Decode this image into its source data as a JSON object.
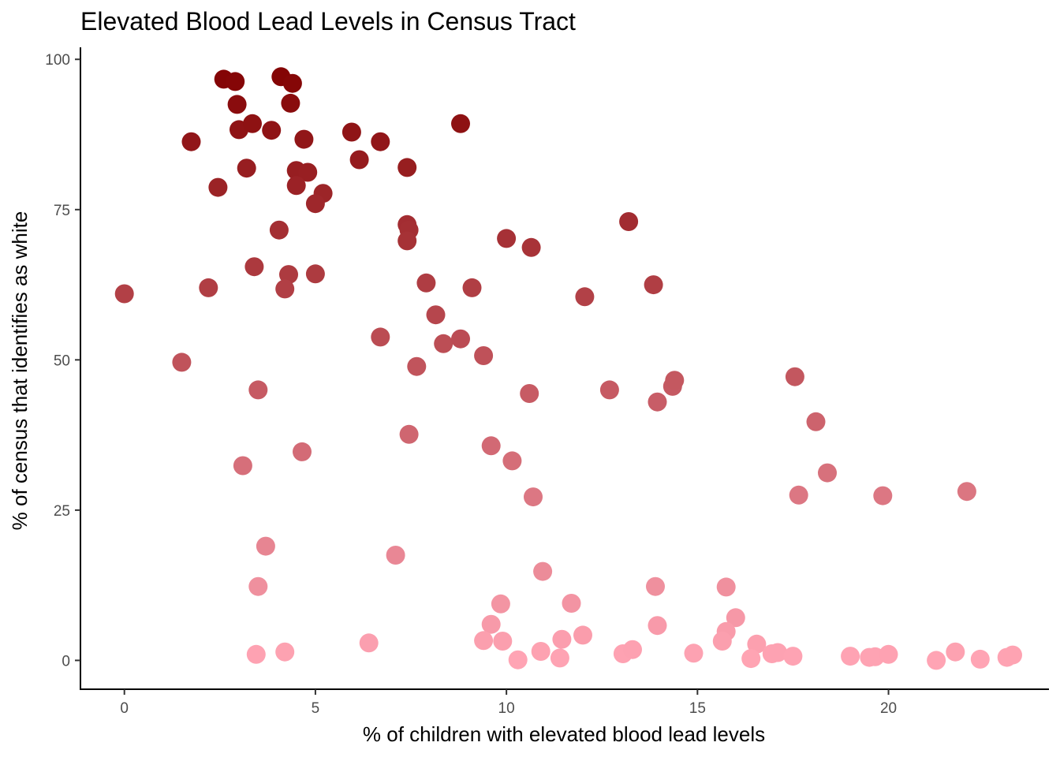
{
  "chart_data": {
    "type": "scatter",
    "title": "Elevated Blood Lead Levels in Census Tract",
    "xlabel": "% of children with elevated blood lead levels",
    "ylabel": "% of census that identifies as white",
    "xlim": [
      -1.15,
      24.2
    ],
    "ylim": [
      -4.8,
      102
    ],
    "xticks": [
      0,
      5,
      10,
      15,
      20
    ],
    "yticks": [
      0,
      25,
      50,
      75,
      100
    ],
    "grid": false,
    "legend": "none",
    "color_scale": {
      "low": "#ffa4b4",
      "high": "#800000",
      "mapped_to": "y"
    },
    "points": [
      {
        "x": 2.6,
        "y": 96.7
      },
      {
        "x": 2.9,
        "y": 96.3
      },
      {
        "x": 4.1,
        "y": 97.1
      },
      {
        "x": 4.4,
        "y": 96.0
      },
      {
        "x": 2.95,
        "y": 92.5
      },
      {
        "x": 4.35,
        "y": 92.7
      },
      {
        "x": 3.0,
        "y": 88.3
      },
      {
        "x": 3.35,
        "y": 89.3
      },
      {
        "x": 3.85,
        "y": 88.2
      },
      {
        "x": 5.95,
        "y": 87.9
      },
      {
        "x": 8.8,
        "y": 89.3
      },
      {
        "x": 1.75,
        "y": 86.3
      },
      {
        "x": 4.7,
        "y": 86.7
      },
      {
        "x": 6.7,
        "y": 86.3
      },
      {
        "x": 6.15,
        "y": 83.3
      },
      {
        "x": 3.2,
        "y": 81.9
      },
      {
        "x": 4.5,
        "y": 81.5
      },
      {
        "x": 4.8,
        "y": 81.2
      },
      {
        "x": 7.4,
        "y": 82.0
      },
      {
        "x": 2.45,
        "y": 78.7
      },
      {
        "x": 4.5,
        "y": 79.0
      },
      {
        "x": 5.2,
        "y": 77.7
      },
      {
        "x": 5.0,
        "y": 76.0
      },
      {
        "x": 4.05,
        "y": 71.6
      },
      {
        "x": 7.4,
        "y": 72.5
      },
      {
        "x": 7.45,
        "y": 71.6
      },
      {
        "x": 7.4,
        "y": 69.8
      },
      {
        "x": 13.2,
        "y": 73.0
      },
      {
        "x": 10.0,
        "y": 70.2
      },
      {
        "x": 10.65,
        "y": 68.7
      },
      {
        "x": 3.4,
        "y": 65.5
      },
      {
        "x": 4.3,
        "y": 64.2
      },
      {
        "x": 5.0,
        "y": 64.3
      },
      {
        "x": 4.2,
        "y": 61.8
      },
      {
        "x": 0.0,
        "y": 61.0
      },
      {
        "x": 2.2,
        "y": 62.0
      },
      {
        "x": 7.9,
        "y": 62.8
      },
      {
        "x": 9.1,
        "y": 62.0
      },
      {
        "x": 12.05,
        "y": 60.5
      },
      {
        "x": 13.85,
        "y": 62.5
      },
      {
        "x": 8.15,
        "y": 57.5
      },
      {
        "x": 6.7,
        "y": 53.8
      },
      {
        "x": 8.35,
        "y": 52.7
      },
      {
        "x": 8.8,
        "y": 53.5
      },
      {
        "x": 9.4,
        "y": 50.7
      },
      {
        "x": 1.5,
        "y": 49.6
      },
      {
        "x": 7.65,
        "y": 48.9
      },
      {
        "x": 3.5,
        "y": 45.0
      },
      {
        "x": 10.6,
        "y": 44.4
      },
      {
        "x": 12.7,
        "y": 45.0
      },
      {
        "x": 14.35,
        "y": 45.6
      },
      {
        "x": 14.4,
        "y": 46.6
      },
      {
        "x": 13.95,
        "y": 43.0
      },
      {
        "x": 17.55,
        "y": 47.2
      },
      {
        "x": 18.1,
        "y": 39.7
      },
      {
        "x": 7.45,
        "y": 37.6
      },
      {
        "x": 9.6,
        "y": 35.7
      },
      {
        "x": 4.65,
        "y": 34.7
      },
      {
        "x": 10.15,
        "y": 33.2
      },
      {
        "x": 3.1,
        "y": 32.4
      },
      {
        "x": 18.4,
        "y": 31.2
      },
      {
        "x": 10.7,
        "y": 27.2
      },
      {
        "x": 17.65,
        "y": 27.5
      },
      {
        "x": 19.85,
        "y": 27.4
      },
      {
        "x": 22.05,
        "y": 28.1
      },
      {
        "x": 3.7,
        "y": 19.0
      },
      {
        "x": 7.1,
        "y": 17.5
      },
      {
        "x": 10.95,
        "y": 14.8
      },
      {
        "x": 3.5,
        "y": 12.3
      },
      {
        "x": 13.9,
        "y": 12.3
      },
      {
        "x": 15.75,
        "y": 12.2
      },
      {
        "x": 9.85,
        "y": 9.4
      },
      {
        "x": 11.7,
        "y": 9.5
      },
      {
        "x": 9.6,
        "y": 6.0
      },
      {
        "x": 13.95,
        "y": 5.8
      },
      {
        "x": 16.0,
        "y": 7.1
      },
      {
        "x": 15.75,
        "y": 4.8
      },
      {
        "x": 9.4,
        "y": 3.3
      },
      {
        "x": 9.9,
        "y": 3.2
      },
      {
        "x": 11.45,
        "y": 3.5
      },
      {
        "x": 12.0,
        "y": 4.2
      },
      {
        "x": 15.65,
        "y": 3.2
      },
      {
        "x": 16.55,
        "y": 2.7
      },
      {
        "x": 6.4,
        "y": 2.9
      },
      {
        "x": 3.45,
        "y": 1.0
      },
      {
        "x": 4.2,
        "y": 1.4
      },
      {
        "x": 10.3,
        "y": 0.1
      },
      {
        "x": 10.9,
        "y": 1.5
      },
      {
        "x": 11.4,
        "y": 0.4
      },
      {
        "x": 13.05,
        "y": 1.1
      },
      {
        "x": 13.3,
        "y": 1.8
      },
      {
        "x": 14.9,
        "y": 1.2
      },
      {
        "x": 16.4,
        "y": 0.3
      },
      {
        "x": 16.95,
        "y": 1.1
      },
      {
        "x": 17.1,
        "y": 1.3
      },
      {
        "x": 17.5,
        "y": 0.7
      },
      {
        "x": 19.0,
        "y": 0.7
      },
      {
        "x": 19.5,
        "y": 0.5
      },
      {
        "x": 19.65,
        "y": 0.6
      },
      {
        "x": 20.0,
        "y": 1.0
      },
      {
        "x": 21.25,
        "y": 0.0
      },
      {
        "x": 21.75,
        "y": 1.4
      },
      {
        "x": 22.4,
        "y": 0.2
      },
      {
        "x": 23.1,
        "y": 0.5
      },
      {
        "x": 23.25,
        "y": 0.9
      }
    ]
  }
}
